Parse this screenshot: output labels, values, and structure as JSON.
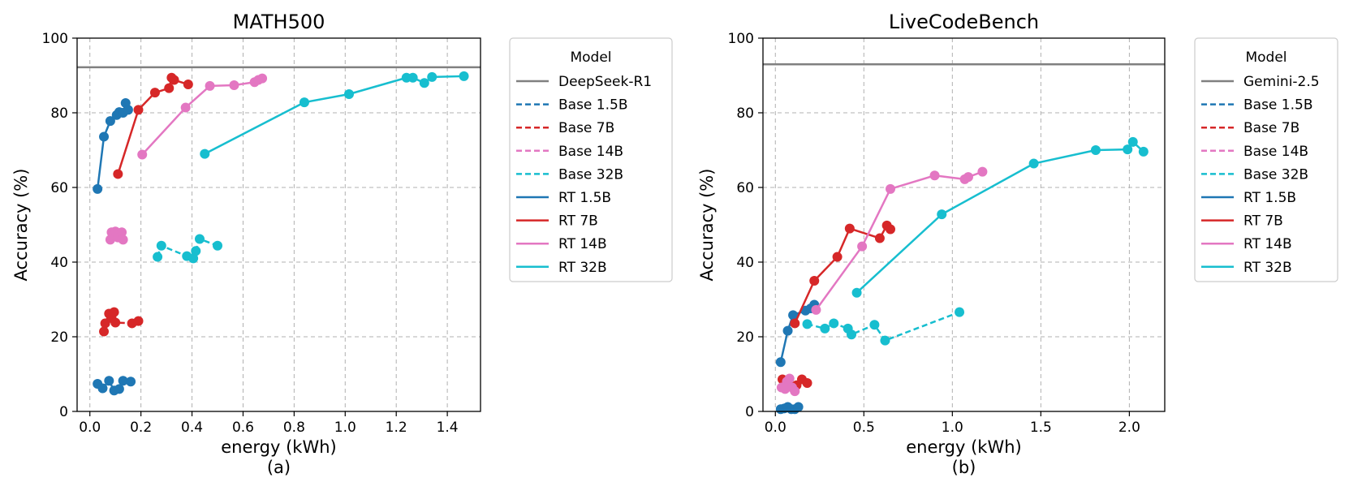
{
  "chart_data": [
    {
      "type": "line",
      "title": "MATH500",
      "caption": "(a)",
      "xlabel": "energy (kWh)",
      "ylabel": "Accuracy (%)",
      "xlim": [
        -0.05,
        1.53
      ],
      "ylim": [
        0,
        100
      ],
      "xticks": [
        "0.0",
        "0.2",
        "0.4",
        "0.6",
        "0.8",
        "1.0",
        "1.2",
        "1.4"
      ],
      "xtick_values": [
        0,
        0.2,
        0.4,
        0.6,
        0.8,
        1.0,
        1.2,
        1.4
      ],
      "yticks": [
        "0",
        "20",
        "40",
        "60",
        "80",
        "100"
      ],
      "ytick_values": [
        0,
        20,
        40,
        60,
        80,
        100
      ],
      "grid": true,
      "legend_title": "Model",
      "legend_placement": "outside-right",
      "reference": {
        "name": "DeepSeek-R1",
        "y": 92.2,
        "color": "#808080"
      },
      "series": [
        {
          "name": "Base 1.5B",
          "color": "#1f77b4",
          "dashed": true,
          "x": [
            0.03,
            0.05,
            0.075,
            0.095,
            0.115,
            0.13,
            0.16
          ],
          "y": [
            7.4,
            6.2,
            8.2,
            5.6,
            6.0,
            8.2,
            8.0
          ]
        },
        {
          "name": "Base 7B",
          "color": "#d62728",
          "dashed": true,
          "x": [
            0.055,
            0.06,
            0.075,
            0.085,
            0.095,
            0.1,
            0.165,
            0.19
          ],
          "y": [
            21.4,
            23.6,
            26.2,
            25.0,
            26.6,
            23.8,
            23.6,
            24.2
          ]
        },
        {
          "name": "Base 14B",
          "color": "#e377c2",
          "dashed": true,
          "x": [
            0.08,
            0.085,
            0.09,
            0.1,
            0.11,
            0.125,
            0.13
          ],
          "y": [
            46.0,
            48.0,
            47.2,
            48.2,
            46.6,
            48.0,
            46.0
          ]
        },
        {
          "name": "Base 32B",
          "color": "#17becf",
          "dashed": true,
          "x": [
            0.265,
            0.28,
            0.38,
            0.405,
            0.415,
            0.43,
            0.5
          ],
          "y": [
            41.4,
            44.4,
            41.6,
            41.0,
            43.0,
            46.2,
            44.4
          ]
        },
        {
          "name": "RT 1.5B",
          "color": "#1f77b4",
          "dashed": false,
          "x": [
            0.03,
            0.055,
            0.08,
            0.105,
            0.115,
            0.13,
            0.14,
            0.15
          ],
          "y": [
            59.6,
            73.6,
            77.8,
            79.4,
            80.2,
            80.0,
            82.6,
            80.8
          ]
        },
        {
          "name": "RT 7B",
          "color": "#d62728",
          "dashed": false,
          "x": [
            0.11,
            0.19,
            0.255,
            0.31,
            0.32,
            0.33,
            0.385
          ],
          "y": [
            63.6,
            80.8,
            85.4,
            86.6,
            89.4,
            88.8,
            87.6
          ]
        },
        {
          "name": "RT 14B",
          "color": "#e377c2",
          "dashed": false,
          "x": [
            0.205,
            0.375,
            0.47,
            0.565,
            0.645,
            0.66,
            0.675
          ],
          "y": [
            68.8,
            81.4,
            87.2,
            87.4,
            88.2,
            88.8,
            89.2
          ]
        },
        {
          "name": "RT 32B",
          "color": "#17becf",
          "dashed": false,
          "x": [
            0.45,
            0.84,
            1.015,
            1.24,
            1.265,
            1.31,
            1.34,
            1.465
          ],
          "y": [
            69.0,
            82.8,
            85.0,
            89.4,
            89.4,
            88.0,
            89.6,
            89.8
          ]
        }
      ]
    },
    {
      "type": "line",
      "title": "LiveCodeBench",
      "caption": "(b)",
      "xlabel": "energy (kWh)",
      "ylabel": "Accuracy (%)",
      "xlim": [
        -0.07,
        2.2
      ],
      "ylim": [
        0,
        100
      ],
      "xticks": [
        "0.0",
        "0.5",
        "1.0",
        "1.5",
        "2.0"
      ],
      "xtick_values": [
        0,
        0.5,
        1.0,
        1.5,
        2.0
      ],
      "yticks": [
        "0",
        "20",
        "40",
        "60",
        "80",
        "100"
      ],
      "ytick_values": [
        0,
        20,
        40,
        60,
        80,
        100
      ],
      "grid": true,
      "legend_title": "Model",
      "legend_placement": "outside-right",
      "reference": {
        "name": "Gemini-2.5",
        "y": 93.0,
        "color": "#808080"
      },
      "series": [
        {
          "name": "Base 1.5B",
          "color": "#1f77b4",
          "dashed": true,
          "x": [
            0.03,
            0.05,
            0.07,
            0.09,
            0.11,
            0.13
          ],
          "y": [
            0.6,
            0.8,
            1.2,
            0.6,
            0.6,
            1.2
          ]
        },
        {
          "name": "Base 7B",
          "color": "#d62728",
          "dashed": true,
          "x": [
            0.04,
            0.06,
            0.09,
            0.12,
            0.15,
            0.18
          ],
          "y": [
            8.6,
            7.8,
            6.6,
            7.0,
            8.6,
            7.6
          ]
        },
        {
          "name": "Base 14B",
          "color": "#e377c2",
          "dashed": true,
          "x": [
            0.035,
            0.055,
            0.065,
            0.08,
            0.095,
            0.11
          ],
          "y": [
            6.4,
            6.0,
            8.0,
            8.8,
            6.4,
            5.4
          ]
        },
        {
          "name": "Base 32B",
          "color": "#17becf",
          "dashed": true,
          "x": [
            0.18,
            0.28,
            0.33,
            0.41,
            0.43,
            0.56,
            0.62,
            1.04
          ],
          "y": [
            23.4,
            22.2,
            23.6,
            22.2,
            20.6,
            23.2,
            19.0,
            26.6
          ]
        },
        {
          "name": "RT 1.5B",
          "color": "#1f77b4",
          "dashed": false,
          "x": [
            0.03,
            0.07,
            0.1,
            0.17,
            0.2,
            0.22
          ],
          "y": [
            13.2,
            21.6,
            25.8,
            27.0,
            27.6,
            28.6
          ]
        },
        {
          "name": "RT 7B",
          "color": "#d62728",
          "dashed": false,
          "x": [
            0.11,
            0.22,
            0.35,
            0.42,
            0.59,
            0.63,
            0.65
          ],
          "y": [
            23.6,
            35.0,
            41.4,
            49.0,
            46.4,
            49.8,
            48.8
          ]
        },
        {
          "name": "RT 14B",
          "color": "#e377c2",
          "dashed": false,
          "x": [
            0.23,
            0.49,
            0.65,
            0.9,
            1.07,
            1.09,
            1.17
          ],
          "y": [
            27.2,
            44.2,
            59.6,
            63.2,
            62.2,
            62.8,
            64.2
          ]
        },
        {
          "name": "RT 32B",
          "color": "#17becf",
          "dashed": false,
          "x": [
            0.46,
            0.94,
            1.46,
            1.81,
            1.99,
            2.02,
            2.08
          ],
          "y": [
            31.8,
            52.8,
            66.4,
            70.0,
            70.2,
            72.2,
            69.6
          ]
        }
      ]
    }
  ]
}
